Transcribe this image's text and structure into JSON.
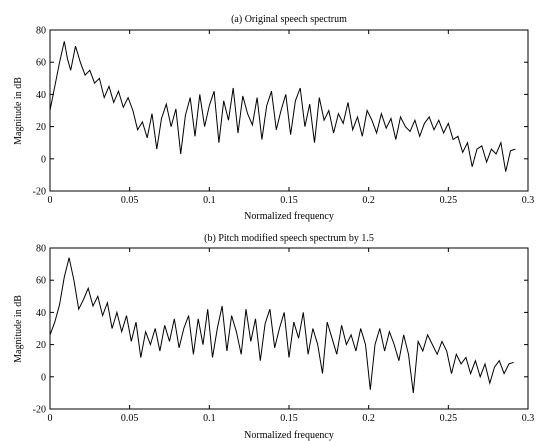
{
  "chart_data": [
    {
      "type": "line",
      "title": "(a) Original speech spectrum",
      "xlabel": "Normalized frequency",
      "ylabel": "Magnitude in dB",
      "xlim": [
        0,
        0.3
      ],
      "ylim": [
        -20,
        80
      ],
      "xticks": [
        0,
        0.05,
        0.1,
        0.15,
        0.2,
        0.25,
        0.3
      ],
      "xtick_labels": [
        "0",
        "0.05",
        "0.1",
        "0.15",
        "0.2",
        "0.25",
        "0.3"
      ],
      "yticks": [
        -20,
        0,
        20,
        40,
        60,
        80
      ],
      "ytick_labels": [
        "-20",
        "0",
        "20",
        "40",
        "60",
        "80"
      ],
      "grid": false,
      "line_color": "#000000",
      "series": [
        {
          "x": [
            0,
            0.003,
            0.006,
            0.009,
            0.011,
            0.013,
            0.016,
            0.019,
            0.022,
            0.025,
            0.028,
            0.031,
            0.034,
            0.037,
            0.04,
            0.043,
            0.046,
            0.049,
            0.052,
            0.055,
            0.058,
            0.061,
            0.064,
            0.067,
            0.07,
            0.073,
            0.076,
            0.079,
            0.082,
            0.085,
            0.088,
            0.091,
            0.094,
            0.097,
            0.1,
            0.103,
            0.106,
            0.109,
            0.112,
            0.115,
            0.118,
            0.121,
            0.124,
            0.127,
            0.13,
            0.133,
            0.136,
            0.139,
            0.142,
            0.145,
            0.148,
            0.151,
            0.154,
            0.157,
            0.16,
            0.163,
            0.166,
            0.169,
            0.172,
            0.175,
            0.178,
            0.181,
            0.184,
            0.187,
            0.19,
            0.193,
            0.196,
            0.199,
            0.202,
            0.205,
            0.208,
            0.211,
            0.214,
            0.217,
            0.22,
            0.223,
            0.226,
            0.229,
            0.232,
            0.235,
            0.238,
            0.241,
            0.244,
            0.247,
            0.25,
            0.253,
            0.256,
            0.259,
            0.262,
            0.265,
            0.268,
            0.271,
            0.274,
            0.277,
            0.28,
            0.283,
            0.286,
            0.289,
            0.292
          ],
          "y": [
            30,
            45,
            60,
            73,
            62,
            55,
            70,
            60,
            52,
            55,
            47,
            50,
            38,
            45,
            35,
            42,
            32,
            38,
            30,
            18,
            23,
            13,
            28,
            6,
            25,
            34,
            20,
            31,
            3,
            27,
            38,
            14,
            40,
            20,
            33,
            42,
            10,
            36,
            24,
            44,
            16,
            39,
            28,
            21,
            38,
            12,
            33,
            42,
            18,
            30,
            40,
            15,
            36,
            44,
            20,
            34,
            10,
            38,
            24,
            30,
            16,
            28,
            22,
            35,
            18,
            26,
            14,
            30,
            24,
            16,
            28,
            19,
            25,
            12,
            26,
            20,
            17,
            24,
            14,
            22,
            26,
            18,
            24,
            16,
            22,
            12,
            14,
            4,
            10,
            -5,
            6,
            8,
            -2,
            6,
            3,
            10,
            -8,
            5,
            6
          ]
        }
      ]
    },
    {
      "type": "line",
      "title": "(b) Pitch modified speech spectrum by 1.5",
      "xlabel": "Normalized frequency",
      "ylabel": "Magnitude in dB",
      "xlim": [
        0,
        0.3
      ],
      "ylim": [
        -20,
        80
      ],
      "xticks": [
        0,
        0.05,
        0.1,
        0.15,
        0.2,
        0.25,
        0.3
      ],
      "xtick_labels": [
        "0",
        "0.05",
        "0.1",
        "0.15",
        "0.2",
        "0.25",
        "0.3"
      ],
      "yticks": [
        -20,
        0,
        20,
        40,
        60,
        80
      ],
      "ytick_labels": [
        "-20",
        "0",
        "20",
        "40",
        "60",
        "80"
      ],
      "grid": false,
      "line_color": "#000000",
      "series": [
        {
          "x": [
            0,
            0.003,
            0.006,
            0.009,
            0.012,
            0.015,
            0.018,
            0.021,
            0.024,
            0.027,
            0.03,
            0.033,
            0.036,
            0.039,
            0.042,
            0.045,
            0.048,
            0.051,
            0.054,
            0.057,
            0.06,
            0.063,
            0.066,
            0.069,
            0.072,
            0.075,
            0.078,
            0.081,
            0.084,
            0.087,
            0.09,
            0.093,
            0.096,
            0.099,
            0.102,
            0.105,
            0.108,
            0.111,
            0.114,
            0.117,
            0.12,
            0.123,
            0.126,
            0.129,
            0.132,
            0.135,
            0.138,
            0.141,
            0.144,
            0.147,
            0.15,
            0.153,
            0.156,
            0.159,
            0.162,
            0.165,
            0.168,
            0.171,
            0.174,
            0.177,
            0.18,
            0.183,
            0.186,
            0.189,
            0.192,
            0.195,
            0.198,
            0.201,
            0.204,
            0.207,
            0.21,
            0.213,
            0.216,
            0.219,
            0.222,
            0.225,
            0.228,
            0.231,
            0.234,
            0.237,
            0.24,
            0.243,
            0.246,
            0.249,
            0.252,
            0.255,
            0.258,
            0.261,
            0.264,
            0.267,
            0.27,
            0.273,
            0.276,
            0.279,
            0.282,
            0.285,
            0.288,
            0.291
          ],
          "y": [
            26,
            34,
            45,
            62,
            74,
            60,
            42,
            48,
            55,
            44,
            50,
            38,
            46,
            30,
            40,
            28,
            38,
            22,
            34,
            12,
            28,
            20,
            30,
            16,
            32,
            22,
            36,
            18,
            30,
            38,
            14,
            36,
            20,
            42,
            12,
            30,
            44,
            16,
            38,
            28,
            14,
            42,
            22,
            36,
            10,
            33,
            42,
            18,
            30,
            40,
            12,
            34,
            24,
            40,
            14,
            30,
            20,
            2,
            34,
            24,
            14,
            32,
            20,
            26,
            16,
            30,
            20,
            -8,
            20,
            30,
            16,
            28,
            20,
            10,
            26,
            14,
            -10,
            22,
            16,
            26,
            20,
            14,
            22,
            16,
            2,
            14,
            8,
            12,
            2,
            10,
            0,
            8,
            -4,
            6,
            10,
            2,
            8,
            9
          ]
        }
      ]
    }
  ]
}
